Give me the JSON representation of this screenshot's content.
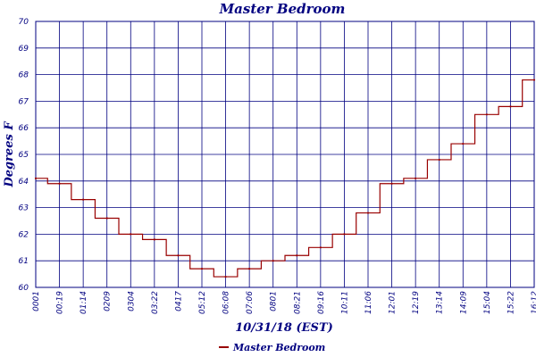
{
  "chart_data": {
    "type": "line",
    "title": "Master Bedroom",
    "xlabel": "10/31/18 (EST)",
    "ylabel": "Degrees F",
    "ylim": [
      60,
      70
    ],
    "yticks": [
      "60",
      "61",
      "62",
      "63",
      "64",
      "65",
      "66",
      "67",
      "68",
      "69",
      "70"
    ],
    "grid": true,
    "legend_placement": "bottom-center",
    "colors": {
      "axis": "#000080",
      "grid": "#000080",
      "series": "#990000"
    },
    "x": [
      "0001",
      "0019",
      "0114",
      "0209",
      "0304",
      "0322",
      "0417",
      "0512",
      "0608",
      "0706",
      "0801",
      "0821",
      "0916",
      "1011",
      "1106",
      "1201",
      "1219",
      "1314",
      "1409",
      "1504",
      "1522",
      "1612"
    ],
    "xtick_labels": [
      "0001",
      "00:19",
      "01:14",
      "0209",
      "0304",
      "03:22",
      "0417",
      "05:12",
      "06:08",
      "07:06",
      "0801",
      "08:21",
      "09:16",
      "10:11",
      "11:06",
      "12:01",
      "12:19",
      "13:14",
      "14:09",
      "15:04",
      "15:22",
      "16:12"
    ],
    "series": [
      {
        "name": "Master Bedroom",
        "values": [
          64.1,
          63.9,
          63.3,
          62.6,
          62.0,
          61.8,
          61.2,
          60.7,
          60.4,
          60.7,
          61.0,
          61.2,
          61.5,
          62.0,
          62.8,
          63.9,
          64.1,
          64.8,
          65.4,
          66.5,
          66.8,
          67.8
        ]
      }
    ]
  }
}
